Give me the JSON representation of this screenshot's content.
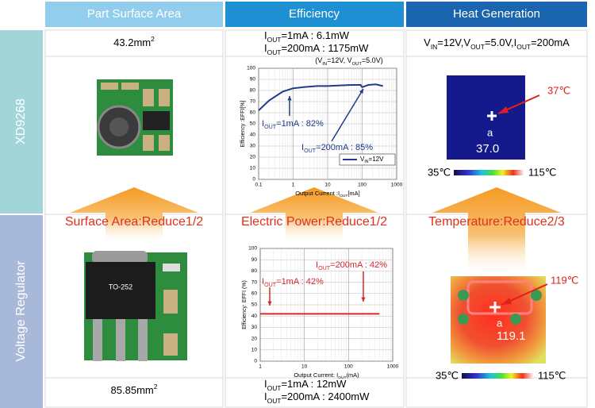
{
  "headers": [
    "Part Surface Area",
    "Efficiency",
    "Heat Generation"
  ],
  "row_labels": [
    "XD9268",
    "Voltage Regulator"
  ],
  "reductions": [
    "Surface Area:Reduce1/2",
    "Electric Power:Reduce1/2",
    "Temperature:Reduce2/3"
  ],
  "xd9268": {
    "surface_area": [
      "43.2mm",
      {
        "sup": "2"
      }
    ],
    "efficiency": [
      [
        "I",
        {
          "sub": "OUT"
        },
        "=1mA : 6.1mW"
      ],
      [
        "I",
        {
          "sub": "OUT"
        },
        "=200mA : 1175mW"
      ]
    ],
    "heat_condition": [
      "V",
      {
        "sub": "IN"
      },
      "=12V,V",
      {
        "sub": "OUT"
      },
      "=5.0V,I",
      {
        "sub": "OUT"
      },
      "=200mA"
    ],
    "chart": {
      "type": "line",
      "condition": [
        "(V",
        {
          "sub": "IN"
        },
        "=12V, V",
        {
          "sub": "OUT"
        },
        "=5.0V)"
      ],
      "ylabel": "Efficiency :EFFI[%]",
      "xlabel": [
        "Output Current :I",
        {
          "sub": "OUT"
        },
        "[mA]"
      ],
      "x": [
        0.1,
        0.2,
        0.5,
        1,
        2,
        5,
        10,
        20,
        50,
        90,
        100,
        150,
        250,
        400
      ],
      "values": [
        62,
        71,
        79,
        82,
        83,
        84,
        84,
        84.5,
        85,
        85,
        83,
        85,
        85.5,
        84
      ],
      "color": "#1f3a8a",
      "xlim": [
        0.1,
        1000
      ],
      "ylim": [
        0,
        100
      ],
      "xticks": [
        0.1,
        1,
        10,
        100,
        1000
      ],
      "yticks": [
        0,
        10,
        20,
        30,
        40,
        50,
        60,
        70,
        80,
        90,
        100
      ],
      "log_x": true,
      "grid": true,
      "annotations": [
        {
          "text": [
            "I",
            {
              "sub": "OUT"
            },
            "=1mA : 82%"
          ],
          "color": "#1f3a8a"
        },
        {
          "text": [
            "I",
            {
              "sub": "OUT"
            },
            "=200mA : 85%"
          ],
          "color": "#1f3a8a"
        }
      ],
      "legend": [
        "V",
        {
          "sub": "IN"
        },
        "=12V"
      ]
    },
    "thermal": {
      "spot_temp": "37℃",
      "marker": "a",
      "reading": "37.0",
      "scale_min": "35℃",
      "scale_max": "115℃"
    }
  },
  "regulator": {
    "surface_area": [
      "85.85mm",
      {
        "sup": "2"
      }
    ],
    "efficiency": [
      [
        "I",
        {
          "sub": "OUT"
        },
        "=1mA : 12mW"
      ],
      [
        "I",
        {
          "sub": "OUT"
        },
        "=200mA : 2400mW"
      ]
    ],
    "package": "TO-252",
    "chart": {
      "type": "line",
      "ylabel": "Efficiency: EFFI (%)",
      "xlabel": [
        "Output Current: I",
        {
          "sub": "OUT"
        },
        "(mA)"
      ],
      "x": [
        1,
        500
      ],
      "values": [
        42,
        42
      ],
      "color": "#d8262a",
      "xlim": [
        1,
        1000
      ],
      "ylim": [
        0,
        100
      ],
      "xticks": [
        1,
        10,
        100,
        1000
      ],
      "yticks": [
        0,
        10,
        20,
        30,
        40,
        50,
        60,
        70,
        80,
        90,
        100
      ],
      "log_x": true,
      "grid": true,
      "annotations": [
        {
          "text": [
            "I",
            {
              "sub": "OUT"
            },
            "=200mA : 42%"
          ],
          "color": "#d8262a"
        },
        {
          "text": [
            "I",
            {
              "sub": "OUT"
            },
            "=1mA : 42%"
          ],
          "color": "#d8262a"
        }
      ]
    },
    "thermal": {
      "spot_temp": "119℃",
      "marker": "a",
      "reading": "119.1",
      "scale_min": "35℃",
      "scale_max": "115℃"
    }
  }
}
